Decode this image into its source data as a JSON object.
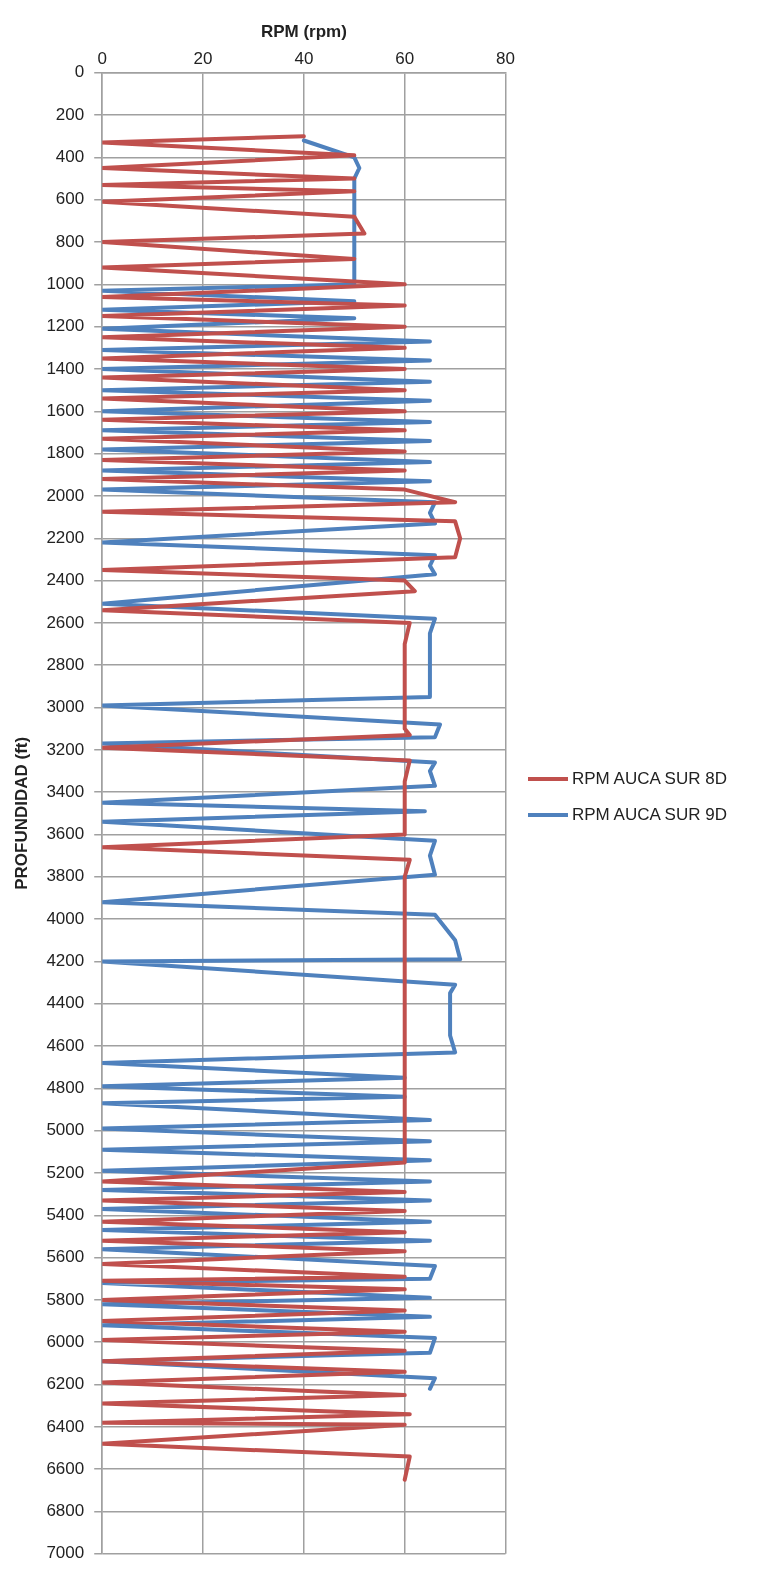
{
  "chart_data": {
    "type": "line",
    "xlabel": "RPM (rpm)",
    "ylabel": "PROFUNDIDAD (ft)",
    "xlim": [
      0,
      80
    ],
    "xticks": [
      0,
      20,
      40,
      60,
      80
    ],
    "ylim": [
      7000,
      0
    ],
    "yticks": [
      0,
      200,
      400,
      600,
      800,
      1000,
      1200,
      1400,
      1600,
      1800,
      2000,
      2200,
      2400,
      2600,
      2800,
      3000,
      3200,
      3400,
      3600,
      3800,
      4000,
      4200,
      4400,
      4600,
      4800,
      5000,
      5200,
      5400,
      5600,
      5800,
      6000,
      6200,
      6400,
      6600,
      6800,
      7000
    ],
    "grid": true,
    "legend": "right",
    "marker": "none",
    "line_style": "solid",
    "series": [
      {
        "name": "RPM AUCA SUR 8D",
        "color": "#c0504d",
        "x": [
          40,
          0,
          50,
          0,
          50,
          0,
          50,
          0,
          50,
          52,
          0,
          50,
          0,
          60,
          0,
          60,
          0,
          60,
          0,
          60,
          0,
          60,
          0,
          60,
          0,
          60,
          0,
          60,
          0,
          60,
          0,
          60,
          0,
          60,
          70,
          0,
          70,
          71,
          70,
          0,
          60,
          62,
          0,
          61,
          60,
          60,
          61,
          0,
          61,
          60,
          60,
          0,
          61,
          60,
          60,
          0,
          60,
          0,
          60,
          0,
          60,
          0,
          60,
          0,
          60,
          0,
          60,
          0,
          60,
          0,
          60,
          0,
          60,
          0,
          60,
          0,
          60,
          0,
          61,
          0,
          60,
          0,
          61,
          60
        ],
        "values": [
          300,
          330,
          390,
          450,
          500,
          530,
          560,
          610,
          680,
          760,
          800,
          880,
          920,
          1000,
          1060,
          1100,
          1150,
          1200,
          1250,
          1300,
          1350,
          1400,
          1440,
          1500,
          1540,
          1600,
          1640,
          1690,
          1730,
          1790,
          1830,
          1880,
          1920,
          1970,
          2030,
          2075,
          2120,
          2200,
          2290,
          2350,
          2400,
          2450,
          2540,
          2600,
          2700,
          3100,
          3130,
          3190,
          3250,
          3350,
          3600,
          3660,
          3720,
          3800,
          5150,
          5240,
          5290,
          5330,
          5380,
          5430,
          5480,
          5520,
          5570,
          5630,
          5690,
          5710,
          5750,
          5800,
          5850,
          5900,
          5950,
          5990,
          6040,
          6090,
          6140,
          6190,
          6250,
          6290,
          6340,
          6380,
          6390,
          6480,
          6540,
          6650
        ]
      },
      {
        "name": "RPM AUCA SUR 9D",
        "color": "#4f81bd",
        "x": [
          40,
          50,
          51,
          50,
          50,
          0,
          50,
          0,
          50,
          0,
          65,
          0,
          65,
          0,
          65,
          0,
          65,
          0,
          65,
          0,
          65,
          0,
          65,
          0,
          65,
          0,
          66,
          65,
          66,
          0,
          66,
          65,
          66,
          0,
          66,
          65,
          65,
          0,
          67,
          66,
          0,
          66,
          65,
          66,
          0,
          64,
          0,
          66,
          65,
          66,
          0,
          66,
          70,
          71,
          0,
          70,
          69,
          69,
          70,
          0,
          60,
          0,
          60,
          0,
          65,
          0,
          65,
          0,
          65,
          0,
          65,
          0,
          65,
          0,
          65,
          0,
          65,
          0,
          66,
          65,
          0,
          65,
          0,
          65,
          0,
          66,
          65,
          0,
          66,
          65
        ],
        "values": [
          320,
          400,
          450,
          500,
          1000,
          1030,
          1080,
          1120,
          1160,
          1210,
          1270,
          1310,
          1360,
          1400,
          1460,
          1500,
          1550,
          1600,
          1650,
          1690,
          1740,
          1780,
          1840,
          1880,
          1930,
          1970,
          2030,
          2080,
          2130,
          2220,
          2280,
          2330,
          2370,
          2510,
          2580,
          2650,
          2950,
          2990,
          3080,
          3140,
          3170,
          3260,
          3300,
          3370,
          3450,
          3490,
          3540,
          3630,
          3700,
          3790,
          3920,
          3980,
          4100,
          4190,
          4200,
          4310,
          4350,
          4550,
          4630,
          4680,
          4750,
          4790,
          4840,
          4870,
          4950,
          4990,
          5050,
          5090,
          5140,
          5190,
          5240,
          5280,
          5330,
          5370,
          5430,
          5470,
          5520,
          5560,
          5640,
          5700,
          5720,
          5790,
          5820,
          5880,
          5920,
          5980,
          6050,
          6090,
          6170,
          6220
        ]
      }
    ]
  }
}
